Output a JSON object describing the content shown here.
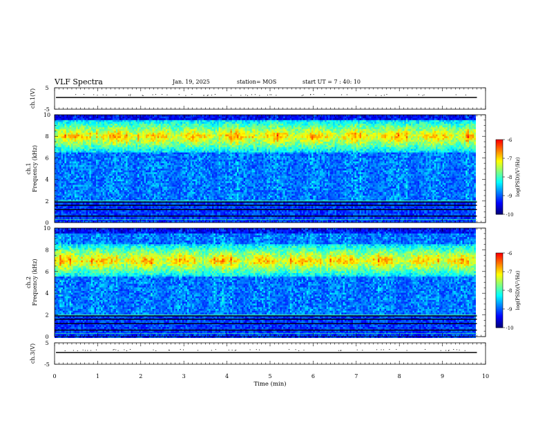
{
  "header": {
    "title": "VLF Spectra",
    "date": "Jan. 19, 2025",
    "station": "station= MOS",
    "start_ut": "start  UT =   7 : 40: 10"
  },
  "chart_data": [
    {
      "id": "ch1_waveform",
      "type": "line",
      "ylabel": "ch.1(V)",
      "ylim": [
        -5,
        5
      ],
      "yticks": [
        "5",
        "-5"
      ],
      "xlim": [
        0,
        10
      ],
      "trace_value": 0
    },
    {
      "id": "ch1_spectrogram",
      "type": "heatmap",
      "ylabel_lines": [
        "ch.1",
        "Frequency  (kHz)"
      ],
      "ylim": [
        0,
        10
      ],
      "yticks": [
        "0",
        "2",
        "4",
        "6",
        "8",
        "10"
      ],
      "xlim": [
        0,
        10
      ],
      "data_end_min": 9.8,
      "emission_band_khz": [
        6.5,
        9.5
      ],
      "colorbar": {
        "label": "log(PSD)(V²/Hz)",
        "ticks": [
          "-6",
          "-7",
          "-8",
          "-9",
          "-10"
        ],
        "range": [
          -10,
          -6
        ]
      }
    },
    {
      "id": "ch2_spectrogram",
      "type": "heatmap",
      "ylabel_lines": [
        "ch.2",
        "Frequency  (kHz)"
      ],
      "ylim": [
        0,
        10
      ],
      "yticks": [
        "0",
        "2",
        "4",
        "6",
        "8",
        "10"
      ],
      "xlim": [
        0,
        10
      ],
      "data_end_min": 9.8,
      "emission_band_khz": [
        5.5,
        8.5
      ],
      "colorbar": {
        "label": "log(PSD)(V²/Hz)",
        "ticks": [
          "-6",
          "-7",
          "-8",
          "-9",
          "-10"
        ],
        "range": [
          -10,
          -6
        ]
      }
    },
    {
      "id": "ch3_waveform",
      "type": "line",
      "ylabel": "ch.3(V)",
      "ylim": [
        -5,
        5
      ],
      "yticks": [
        "5",
        "-5"
      ],
      "xlim": [
        0,
        10
      ],
      "trace_value": 0,
      "xlabel": "Time  (min)",
      "xticks": [
        "0",
        "1",
        "2",
        "3",
        "4",
        "5",
        "6",
        "7",
        "8",
        "9",
        "10"
      ]
    }
  ],
  "colors": {
    "colormap": [
      "#00007f",
      "#0000ff",
      "#0080ff",
      "#00ffff",
      "#80ff80",
      "#ffff00",
      "#ff8000",
      "#ff0000"
    ],
    "axis": "#000000",
    "background": "#ffffff"
  }
}
